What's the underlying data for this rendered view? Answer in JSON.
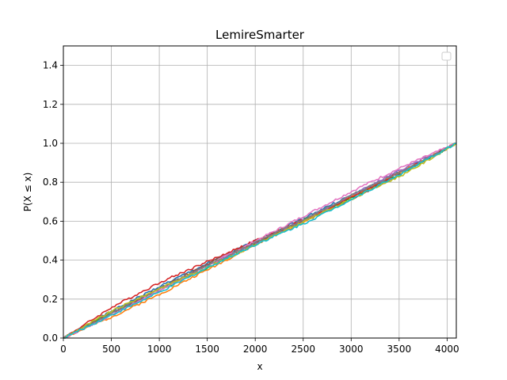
{
  "chart_data": {
    "type": "line",
    "title": "LemireSmarter",
    "xlabel": "x",
    "ylabel": "P(X ≤ x)",
    "xlim": [
      0,
      4096
    ],
    "ylim": [
      0,
      1.5
    ],
    "xticks": [
      0,
      500,
      1000,
      1500,
      2000,
      2500,
      3000,
      3500,
      4000
    ],
    "yticks": [
      0.0,
      0.2,
      0.4,
      0.6,
      0.8,
      1.0,
      1.2,
      1.4
    ],
    "grid": true,
    "legend": "top-right (empty)",
    "description_note": "",
    "series_colors": [
      "#1f77b4",
      "#ff7f0e",
      "#2ca02c",
      "#d62728",
      "#9467bd",
      "#8c564b",
      "#e377c2",
      "#7f7f7f",
      "#bcbd22",
      "#17becf"
    ],
    "series": [
      {
        "x": [
          0,
          512,
          1024,
          1536,
          2048,
          2560,
          3072,
          3584,
          4096
        ],
        "values": [
          0.0,
          0.14,
          0.27,
          0.39,
          0.51,
          0.63,
          0.75,
          0.87,
          1.0
        ]
      },
      {
        "x": [
          0,
          512,
          1024,
          1536,
          2048,
          2560,
          3072,
          3584,
          4096
        ],
        "values": [
          0.0,
          0.11,
          0.23,
          0.36,
          0.49,
          0.61,
          0.74,
          0.87,
          1.0
        ]
      },
      {
        "x": [
          0,
          512,
          1024,
          1536,
          2048,
          2560,
          3072,
          3584,
          4096
        ],
        "values": [
          0.0,
          0.13,
          0.25,
          0.37,
          0.5,
          0.62,
          0.74,
          0.86,
          1.0
        ]
      },
      {
        "x": [
          0,
          512,
          1024,
          1536,
          2048,
          2560,
          3072,
          3584,
          4096
        ],
        "values": [
          0.0,
          0.16,
          0.29,
          0.4,
          0.51,
          0.62,
          0.74,
          0.87,
          1.0
        ]
      },
      {
        "x": [
          0,
          512,
          1024,
          1536,
          2048,
          2560,
          3072,
          3584,
          4096
        ],
        "values": [
          0.0,
          0.12,
          0.25,
          0.38,
          0.5,
          0.62,
          0.75,
          0.88,
          1.0
        ]
      },
      {
        "x": [
          0,
          512,
          1024,
          1536,
          2048,
          2560,
          3072,
          3584,
          4096
        ],
        "values": [
          0.0,
          0.13,
          0.26,
          0.39,
          0.5,
          0.61,
          0.73,
          0.86,
          1.0
        ]
      },
      {
        "x": [
          0,
          512,
          1024,
          1536,
          2048,
          2560,
          3072,
          3584,
          4096
        ],
        "values": [
          0.0,
          0.12,
          0.25,
          0.38,
          0.51,
          0.64,
          0.77,
          0.89,
          1.0
        ]
      },
      {
        "x": [
          0,
          512,
          1024,
          1536,
          2048,
          2560,
          3072,
          3584,
          4096
        ],
        "values": [
          0.0,
          0.13,
          0.26,
          0.38,
          0.5,
          0.62,
          0.75,
          0.87,
          1.0
        ]
      },
      {
        "x": [
          0,
          512,
          1024,
          1536,
          2048,
          2560,
          3072,
          3584,
          4096
        ],
        "values": [
          0.0,
          0.14,
          0.26,
          0.37,
          0.49,
          0.61,
          0.73,
          0.85,
          1.0
        ]
      },
      {
        "x": [
          0,
          512,
          1024,
          1536,
          2048,
          2560,
          3072,
          3584,
          4096
        ],
        "values": [
          0.0,
          0.12,
          0.24,
          0.37,
          0.49,
          0.6,
          0.73,
          0.86,
          1.0
        ]
      }
    ]
  }
}
